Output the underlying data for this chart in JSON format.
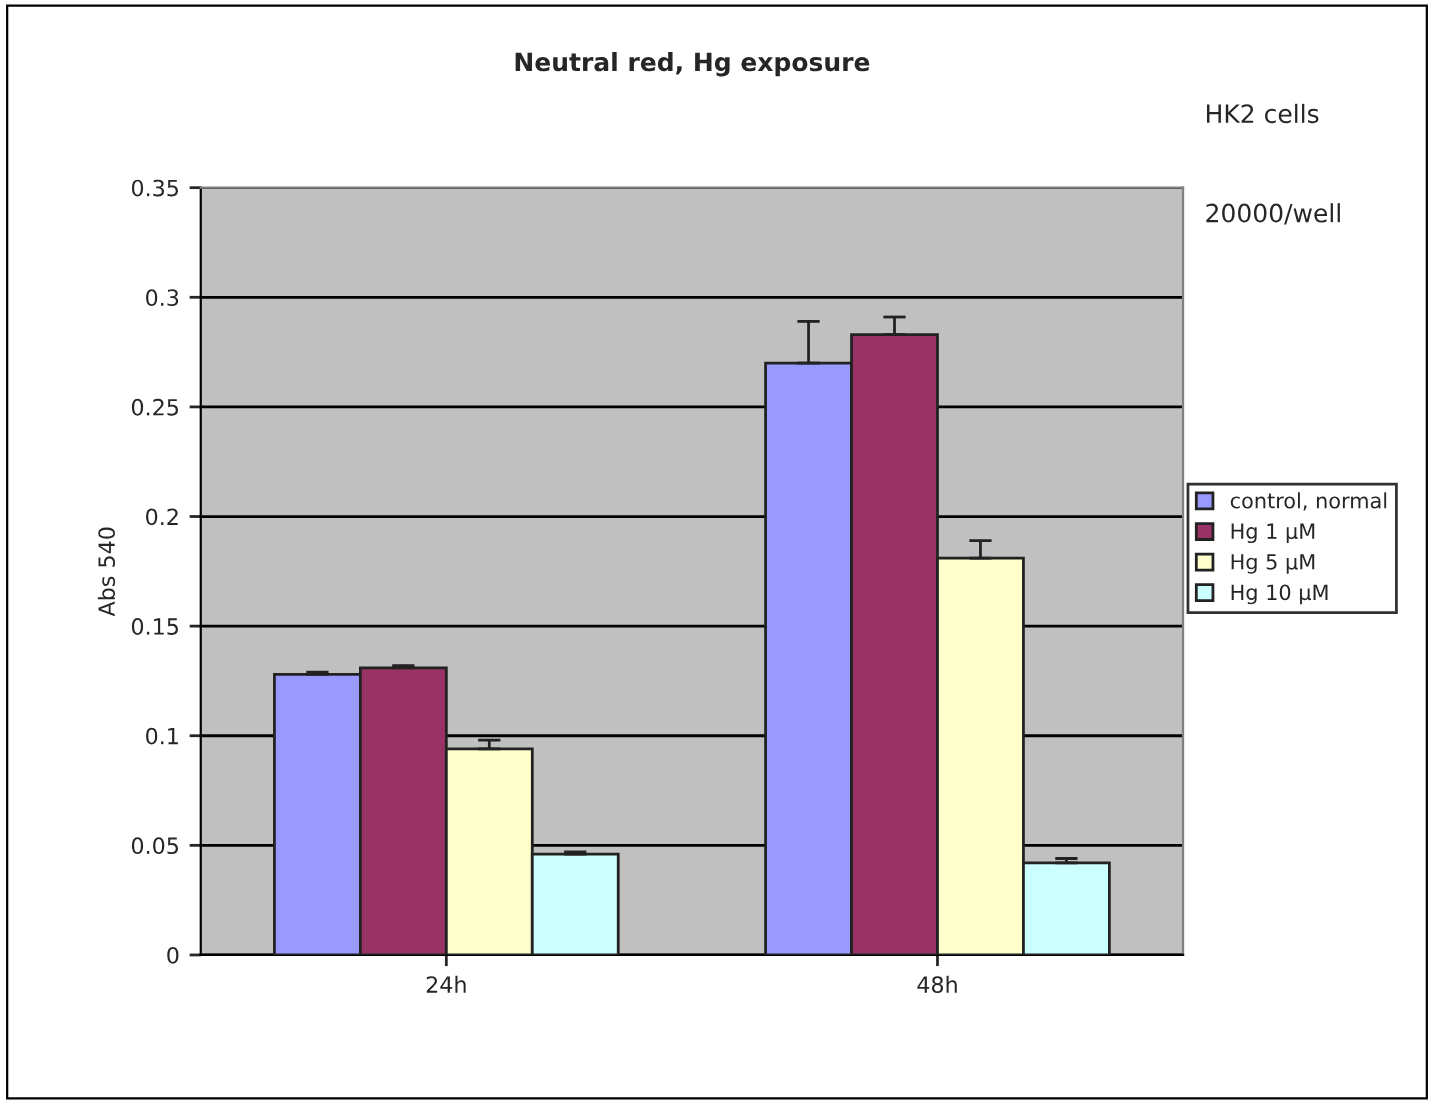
{
  "chart_data": {
    "type": "bar",
    "title": "Neutral red, Hg exposure",
    "ylabel": "Abs 540",
    "categories": [
      "24h",
      "48h"
    ],
    "series": [
      {
        "name": "control, normal",
        "color": "#9999ff",
        "values": [
          0.128,
          0.27
        ],
        "errors": [
          0.001,
          0.019
        ]
      },
      {
        "name": "Hg 1 µM",
        "color": "#993366",
        "values": [
          0.131,
          0.283
        ],
        "errors": [
          0.001,
          0.008
        ]
      },
      {
        "name": "Hg 5 µM",
        "color": "#ffffcc",
        "values": [
          0.094,
          0.181
        ],
        "errors": [
          0.004,
          0.008
        ]
      },
      {
        "name": "Hg 10 µM",
        "color": "#ccffff",
        "values": [
          0.046,
          0.042
        ],
        "errors": [
          0.001,
          0.002
        ]
      }
    ],
    "ylim": [
      0,
      0.35
    ],
    "yticks": [
      0,
      0.05,
      0.1,
      0.15,
      0.2,
      0.25,
      0.3,
      0.35
    ],
    "grid": "y",
    "legend": "right",
    "annotations": [
      "HK2 cells",
      "20000/well"
    ]
  }
}
